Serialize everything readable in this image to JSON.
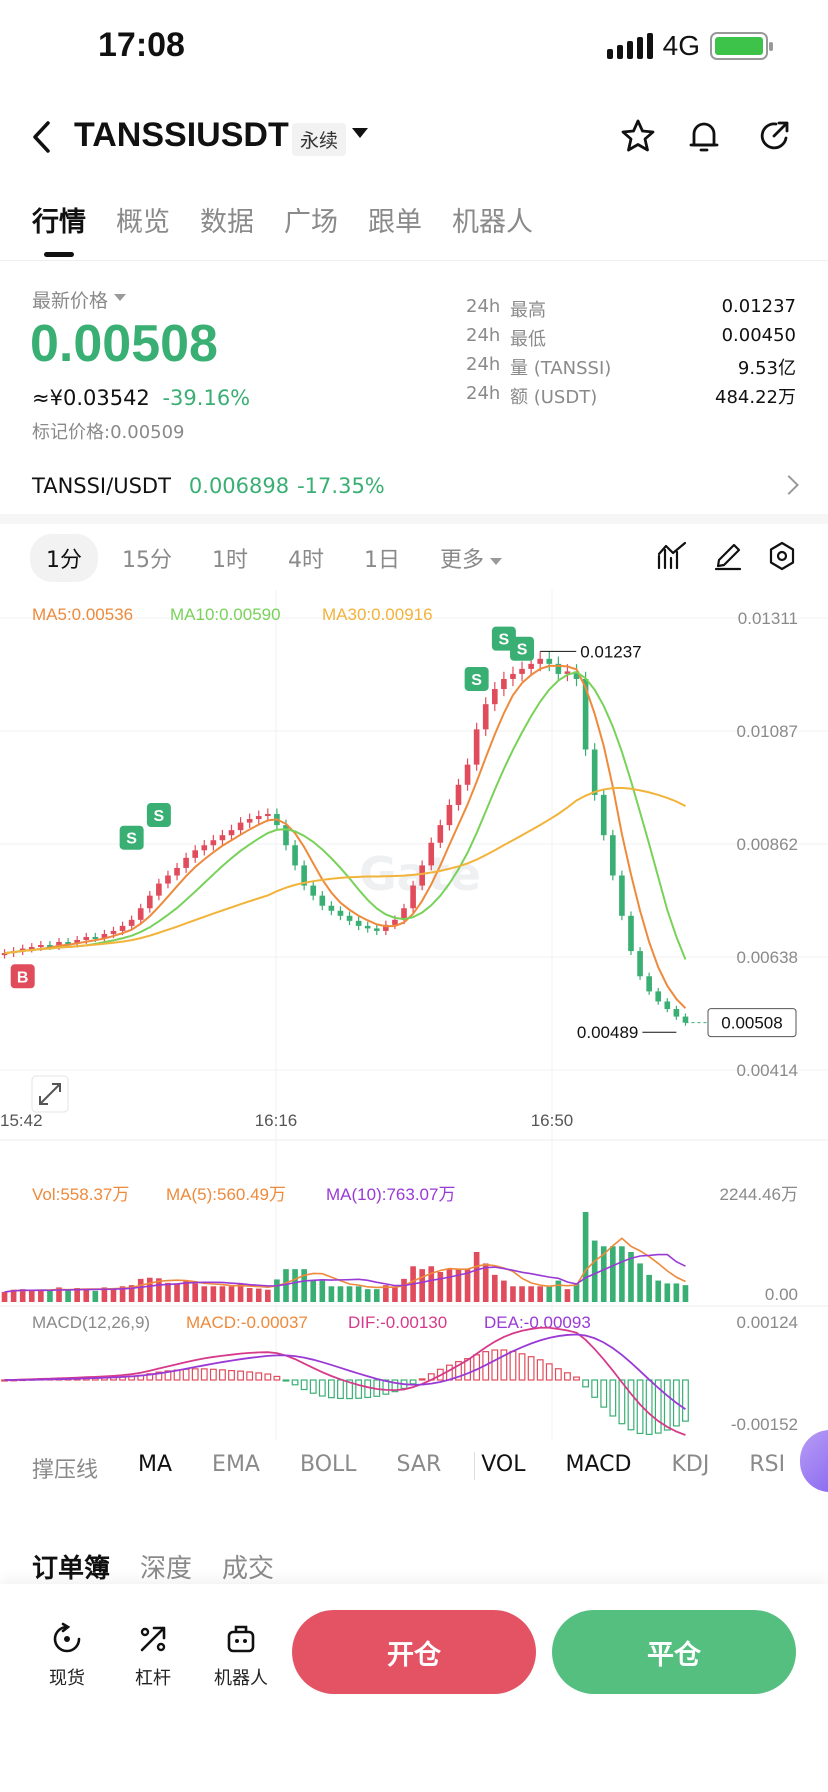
{
  "status_bar": {
    "time": "17:08",
    "network": "4G"
  },
  "header": {
    "pair": "TANSSIUSDT",
    "contract_type": "永续",
    "icons": [
      "back-icon",
      "star-icon",
      "bell-icon",
      "share-icon"
    ]
  },
  "main_tabs": [
    "行情",
    "概览",
    "数据",
    "广场",
    "跟单",
    "机器人"
  ],
  "price": {
    "latest_label": "最新价格",
    "last": "0.00508",
    "cny": "≈¥0.03542",
    "change": "-39.16%",
    "mark_label": "标记价格:",
    "mark": "0.00509"
  },
  "stats": [
    {
      "k1": "24h",
      "k2": "最高",
      "v": "0.01237"
    },
    {
      "k1": "24h",
      "k2": "最低",
      "v": "0.00450"
    },
    {
      "k1": "24h",
      "k2": "量 (TANSSI)",
      "v": "9.53亿"
    },
    {
      "k1": "24h",
      "k2": "额 (USDT)",
      "v": "484.22万"
    }
  ],
  "spot": {
    "pair": "TANSSI/USDT",
    "price": "0.006898",
    "change": "-17.35%"
  },
  "intervals": [
    "1分",
    "15分",
    "1时",
    "4时",
    "1日"
  ],
  "more_label": "更多",
  "ma_legend": {
    "ma5": "MA5:0.00536",
    "ma10": "MA10:0.00590",
    "ma30": "MA30:0.00916"
  },
  "colors": {
    "up": "#e14c5c",
    "down": "#3aaf74",
    "ma5": "#ee8a3c",
    "ma10": "#78d25a",
    "ma30": "#f2b33a",
    "dif": "#d63a8a",
    "dea": "#9a3ad6"
  },
  "chart_data": {
    "type": "candlestick",
    "price_axis": [
      "0.01311",
      "0.01087",
      "0.00862",
      "0.00638",
      "0.00414"
    ],
    "time_axis": [
      "15:42",
      "16:16",
      "16:50"
    ],
    "high_label": "0.01237",
    "low_label": "0.00489",
    "current_label": "0.00508",
    "ylim": [
      0.00414,
      0.01311
    ],
    "closes": [
      0.00646,
      0.0065,
      0.00655,
      0.00658,
      0.00662,
      0.0066,
      0.00668,
      0.00665,
      0.00672,
      0.00678,
      0.00676,
      0.00684,
      0.0069,
      0.007,
      0.00712,
      0.00735,
      0.0076,
      0.00784,
      0.008,
      0.00815,
      0.00835,
      0.0085,
      0.0086,
      0.0087,
      0.0088,
      0.0089,
      0.00905,
      0.00912,
      0.00918,
      0.00922,
      0.009,
      0.0086,
      0.0082,
      0.0078,
      0.0076,
      0.0074,
      0.0073,
      0.0072,
      0.0071,
      0.007,
      0.00695,
      0.0069,
      0.00702,
      0.00712,
      0.00735,
      0.0078,
      0.0082,
      0.00865,
      0.009,
      0.0094,
      0.0098,
      0.0102,
      0.0109,
      0.0114,
      0.0117,
      0.0119,
      0.012,
      0.0121,
      0.0122,
      0.0123,
      0.0122,
      0.012,
      0.01205,
      0.0119,
      0.0105,
      0.0096,
      0.0088,
      0.008,
      0.0072,
      0.0065,
      0.006,
      0.0057,
      0.0055,
      0.00535,
      0.0052,
      0.00508
    ],
    "trade_markers": [
      {
        "label": "B",
        "price": 0.006,
        "index": 2
      },
      {
        "label": "S",
        "price": 0.00875,
        "index": 14
      },
      {
        "label": "S",
        "price": 0.0092,
        "index": 17
      },
      {
        "label": "S",
        "price": 0.0119,
        "index": 52
      },
      {
        "label": "S",
        "price": 0.0127,
        "index": 55
      },
      {
        "label": "S",
        "price": 0.0125,
        "index": 57
      }
    ],
    "volume": {
      "legend": {
        "vol": "Vol:558.37万",
        "ma5": "MA(5):560.49万",
        "ma10": "MA(10):763.07万"
      },
      "axis": [
        "2244.46万",
        "0.00"
      ]
    },
    "macd": {
      "legend": {
        "title": "MACD(12,26,9)",
        "macd": "MACD:-0.00037",
        "dif": "DIF:-0.00130",
        "dea": "DEA:-0.00093"
      },
      "axis": [
        "0.00124",
        "-0.00152"
      ]
    }
  },
  "indicator_tabs": [
    "撑压线",
    "MA",
    "EMA",
    "BOLL",
    "SAR",
    "VOL",
    "MACD",
    "KDJ",
    "RSI"
  ],
  "book_tabs": [
    "订单簿",
    "深度",
    "成交"
  ],
  "bottom": {
    "spot": "现货",
    "leverage": "杠杆",
    "bot": "机器人",
    "open": "开仓",
    "close": "平仓"
  }
}
